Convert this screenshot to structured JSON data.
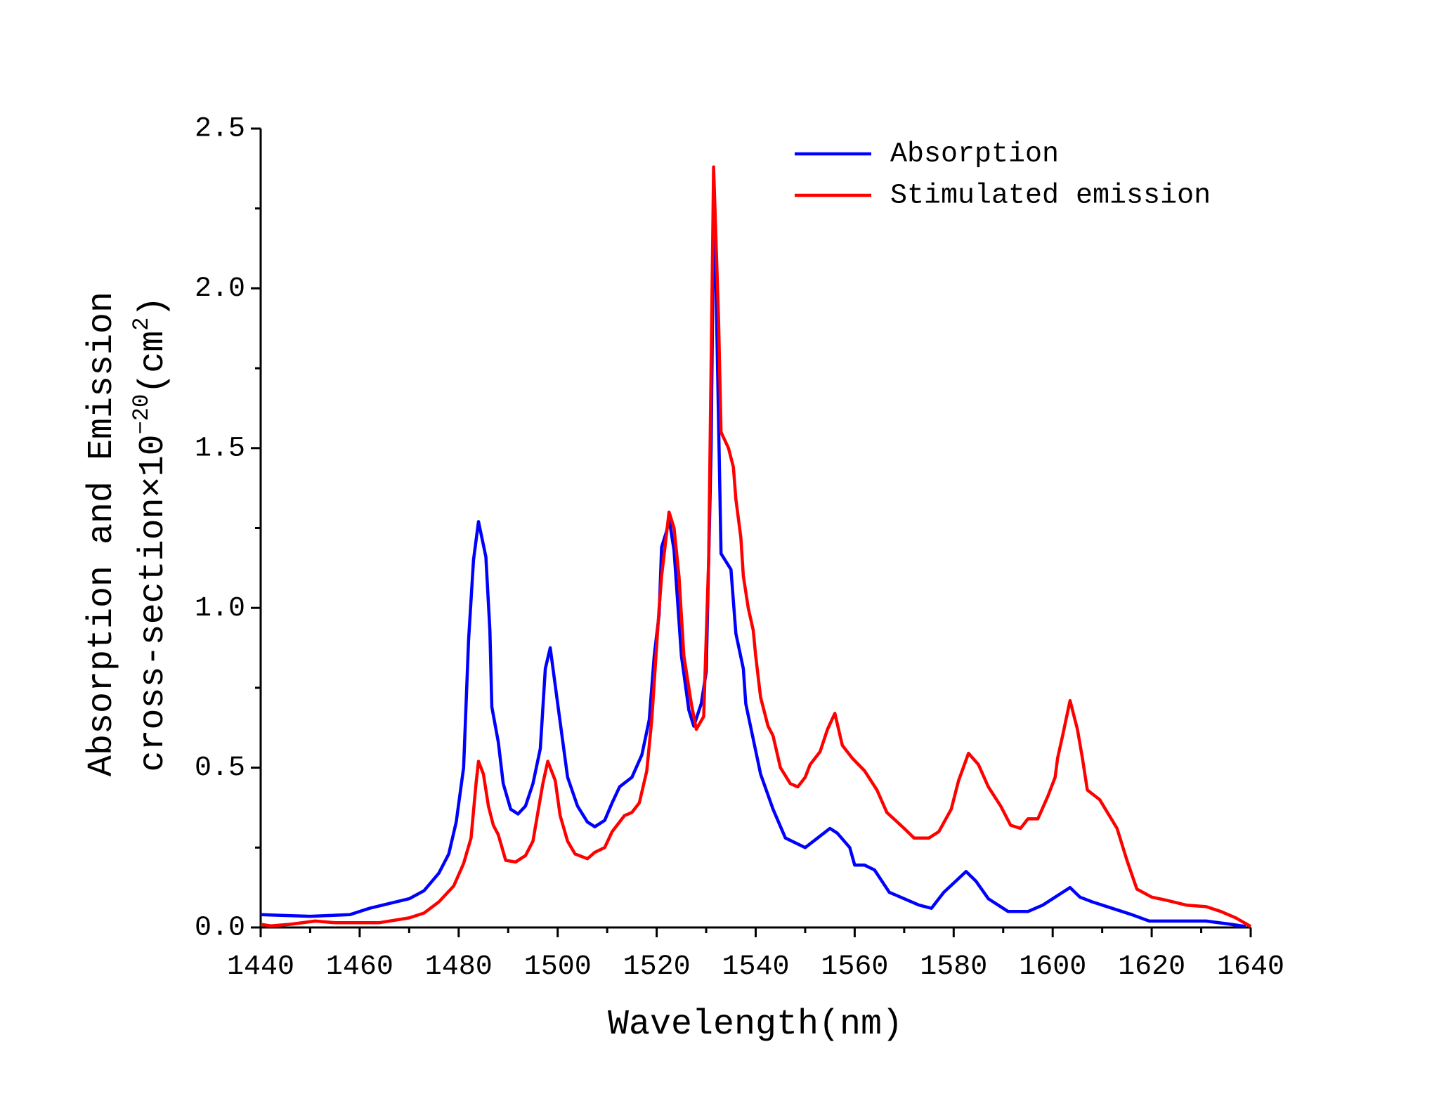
{
  "chart_data": {
    "type": "line",
    "xlabel": "Wavelength(nm)",
    "ylabel": [
      "Absorption and Emission",
      "cross-section×10",
      "−20",
      "(cm",
      "2",
      ")"
    ],
    "xlim": [
      1440,
      1640
    ],
    "xticks": [
      1440,
      1460,
      1480,
      1500,
      1520,
      1540,
      1560,
      1580,
      1600,
      1620,
      1640
    ],
    "ylim": [
      0,
      2.5
    ],
    "yticks": [
      {
        "value": 0,
        "label": "0.0"
      },
      0.5,
      {
        "value": 1,
        "label": "1.0"
      },
      1.5,
      {
        "value": 2,
        "label": "2.0"
      },
      2.5
    ],
    "legend": "upper right",
    "series": [
      {
        "name": "Absorption",
        "color": "#0000ff",
        "x": [
          1440,
          1450,
          1458,
          1462,
          1470,
          1473,
          1476,
          1478,
          1479.5,
          1481,
          1482,
          1483,
          1484,
          1485.5,
          1486.3,
          1486.7,
          1488,
          1489,
          1490.5,
          1492,
          1493.5,
          1495,
          1496.5,
          1497.5,
          1498.5,
          1500,
          1502,
          1504,
          1506,
          1507.5,
          1509.5,
          1511,
          1512.5,
          1515,
          1517,
          1518.5,
          1519.5,
          1520.5,
          1521,
          1522,
          1522.5,
          1523.5,
          1525,
          1526.5,
          1527.5,
          1529,
          1530,
          1531,
          1531.5,
          1532,
          1533,
          1535,
          1536,
          1537.5,
          1538,
          1541,
          1543.5,
          1546,
          1550,
          1552.5,
          1555,
          1556.5,
          1559,
          1560,
          1562,
          1564,
          1567,
          1570,
          1573,
          1575.5,
          1578,
          1582.5,
          1584.5,
          1587,
          1591,
          1595,
          1598,
          1602,
          1603.5,
          1605.5,
          1608,
          1612,
          1616,
          1619.5,
          1631,
          1636,
          1639
        ],
        "values": [
          0.04,
          0.035,
          0.04,
          0.06,
          0.09,
          0.115,
          0.17,
          0.23,
          0.33,
          0.5,
          0.9,
          1.15,
          1.27,
          1.16,
          0.93,
          0.69,
          0.58,
          0.45,
          0.37,
          0.355,
          0.38,
          0.45,
          0.56,
          0.81,
          0.875,
          0.7,
          0.47,
          0.38,
          0.33,
          0.315,
          0.335,
          0.39,
          0.44,
          0.47,
          0.54,
          0.65,
          0.85,
          0.98,
          1.19,
          1.24,
          1.28,
          1.18,
          0.85,
          0.68,
          0.63,
          0.7,
          0.8,
          1.5,
          2.23,
          2.0,
          1.17,
          1.12,
          0.92,
          0.81,
          0.7,
          0.48,
          0.37,
          0.28,
          0.25,
          0.28,
          0.31,
          0.295,
          0.25,
          0.195,
          0.195,
          0.18,
          0.11,
          0.09,
          0.07,
          0.06,
          0.11,
          0.175,
          0.145,
          0.09,
          0.05,
          0.05,
          0.07,
          0.11,
          0.125,
          0.095,
          0.08,
          0.06,
          0.04,
          0.02,
          0.02,
          0.01,
          0.003
        ]
      },
      {
        "name": "Stimulated emission",
        "color": "#ff0000",
        "x": [
          1440,
          1442,
          1446,
          1451,
          1455,
          1464,
          1470,
          1473,
          1476,
          1479,
          1481,
          1482.5,
          1483.5,
          1484,
          1485,
          1486,
          1487,
          1488,
          1489.5,
          1491.5,
          1493.5,
          1495,
          1496,
          1497,
          1498,
          1499.5,
          1500.5,
          1502,
          1503.5,
          1506,
          1507.5,
          1509.5,
          1511,
          1513.5,
          1515,
          1516.5,
          1518,
          1519,
          1520.5,
          1521,
          1522.5,
          1523.5,
          1524.5,
          1525.5,
          1527,
          1528,
          1529.5,
          1530.5,
          1531.5,
          1532.5,
          1533,
          1534.5,
          1535.5,
          1536,
          1537,
          1537.5,
          1538.5,
          1539.5,
          1540,
          1541,
          1542.5,
          1543.5,
          1545,
          1547,
          1548.5,
          1550,
          1551,
          1553,
          1554.5,
          1556,
          1557.5,
          1559.5,
          1562,
          1564.5,
          1566.5,
          1570,
          1572,
          1575,
          1577,
          1579.5,
          1581,
          1583,
          1585,
          1587,
          1589.5,
          1591.5,
          1593.5,
          1595,
          1597,
          1599,
          1600.5,
          1601,
          1602,
          1603.5,
          1605,
          1606,
          1607,
          1609.5,
          1613,
          1615,
          1617,
          1620,
          1623,
          1627,
          1631,
          1634,
          1637,
          1640
        ],
        "values": [
          0.01,
          0.005,
          0.01,
          0.02,
          0.015,
          0.015,
          0.03,
          0.045,
          0.08,
          0.13,
          0.2,
          0.28,
          0.45,
          0.52,
          0.48,
          0.38,
          0.32,
          0.29,
          0.21,
          0.205,
          0.225,
          0.27,
          0.36,
          0.45,
          0.52,
          0.46,
          0.35,
          0.27,
          0.23,
          0.215,
          0.235,
          0.25,
          0.3,
          0.35,
          0.36,
          0.39,
          0.49,
          0.65,
          1.0,
          1.1,
          1.3,
          1.25,
          1.1,
          0.85,
          0.7,
          0.62,
          0.66,
          1.15,
          2.38,
          1.9,
          1.55,
          1.5,
          1.44,
          1.34,
          1.22,
          1.1,
          1.0,
          0.93,
          0.85,
          0.72,
          0.63,
          0.6,
          0.5,
          0.45,
          0.44,
          0.47,
          0.51,
          0.55,
          0.62,
          0.67,
          0.57,
          0.53,
          0.49,
          0.43,
          0.36,
          0.31,
          0.28,
          0.28,
          0.3,
          0.37,
          0.46,
          0.545,
          0.51,
          0.44,
          0.38,
          0.32,
          0.31,
          0.34,
          0.34,
          0.41,
          0.47,
          0.53,
          0.6,
          0.71,
          0.62,
          0.53,
          0.43,
          0.4,
          0.31,
          0.21,
          0.12,
          0.095,
          0.085,
          0.07,
          0.065,
          0.05,
          0.03,
          0.003
        ]
      }
    ]
  }
}
